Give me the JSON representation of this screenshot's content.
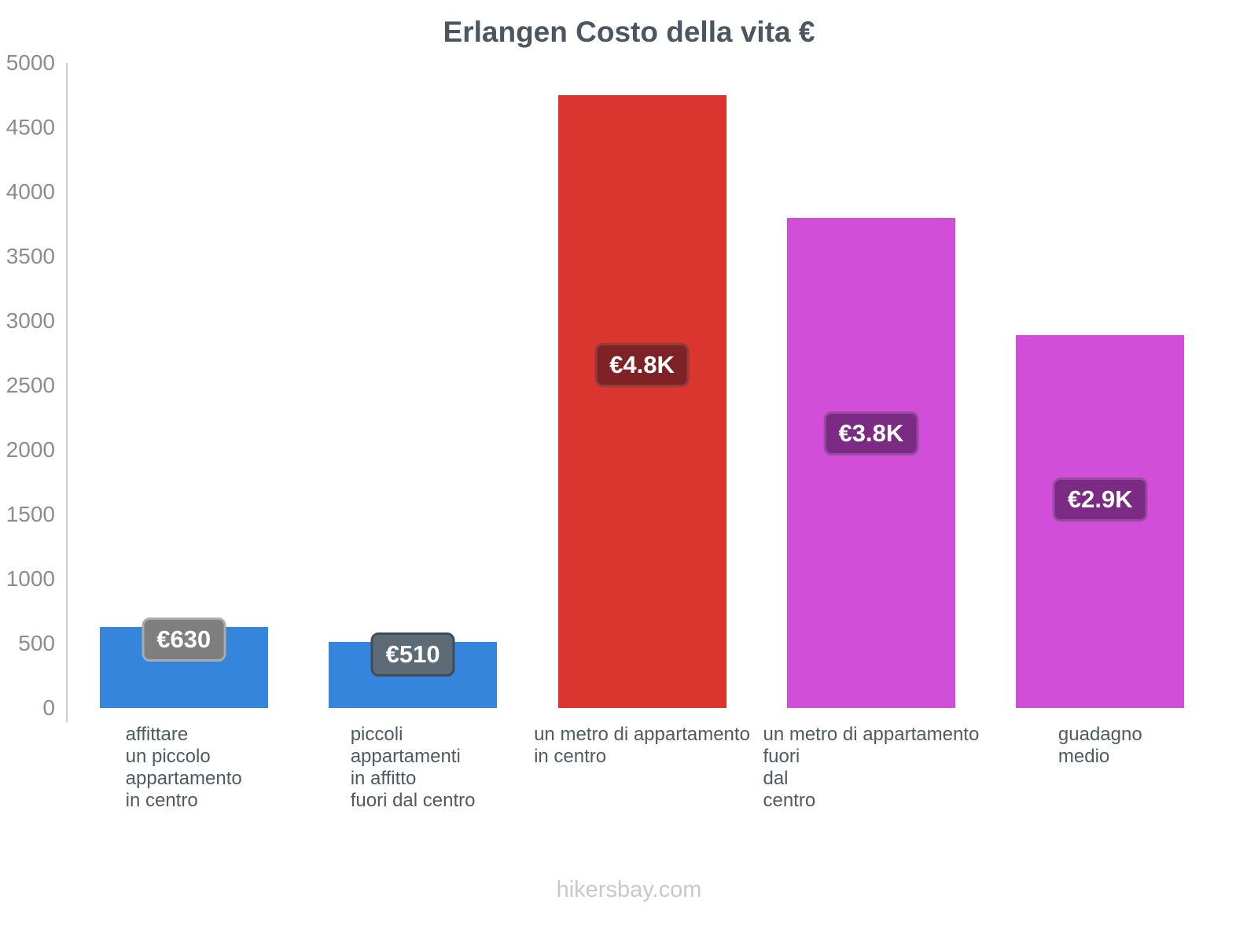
{
  "title": "Erlangen Costo della vita €",
  "footer": "hikersbay.com",
  "chart_data": {
    "type": "bar",
    "title": "Erlangen Costo della vita €",
    "xlabel": "",
    "ylabel": "",
    "ylim": [
      0,
      5000
    ],
    "yticks": [
      0,
      500,
      1000,
      1500,
      2000,
      2500,
      3000,
      3500,
      4000,
      4500,
      5000
    ],
    "grid": false,
    "legend": "none",
    "categories": [
      [
        "affittare",
        "un piccolo",
        "appartamento",
        "in centro"
      ],
      [
        "piccoli",
        "appartamenti",
        "in affitto",
        "fuori dal centro"
      ],
      [
        "un metro di appartamento",
        "in centro"
      ],
      [
        "un metro di appartamento",
        "fuori",
        "dal",
        "centro"
      ],
      [
        "guadagno",
        "medio"
      ]
    ],
    "values": [
      630,
      510,
      4750,
      3800,
      2890
    ],
    "bar_labels": [
      "€630",
      "€510",
      "€4.8K",
      "€3.8K",
      "€2.9K"
    ],
    "bar_colors": [
      "#3585dd",
      "#3585dd",
      "#da352e",
      "#d14ed9",
      "#d14ed9"
    ],
    "badge_colors": [
      "#7f7f7f",
      "#5c6b75",
      "#7d2225",
      "#7c2b85",
      "#7c2b85"
    ],
    "badge_border_colors": [
      "#ababab",
      "#3e4c57",
      "#963a3c",
      "#9a4aa3",
      "#9a4aa3"
    ],
    "accent_colors": {
      "blue": "#3585dd",
      "red": "#da352e",
      "magenta": "#d14ed9"
    }
  }
}
